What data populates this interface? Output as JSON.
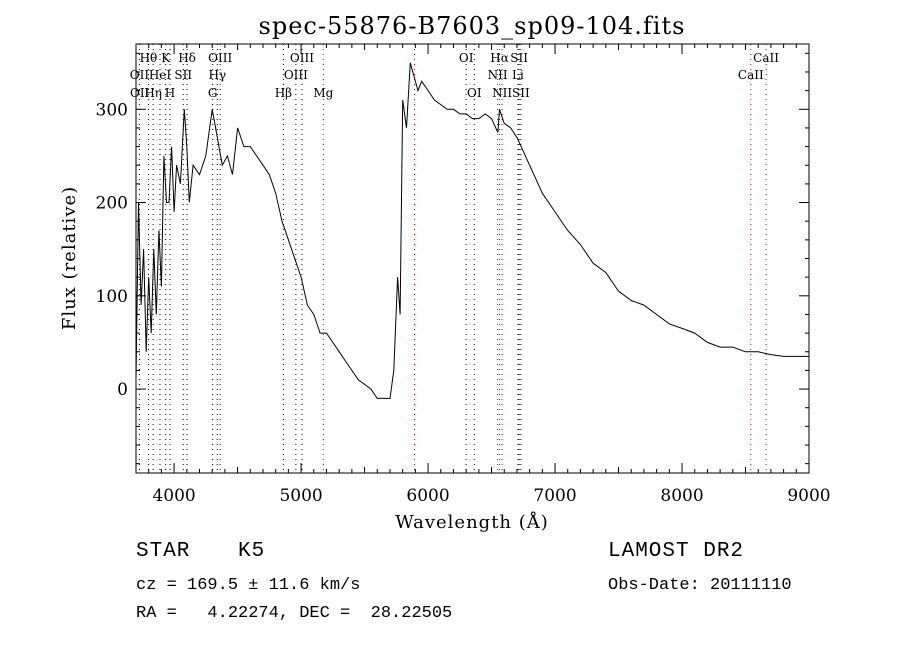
{
  "chart_data": {
    "type": "line",
    "title": "spec-55876-B7603_sp09-104.fits",
    "xlabel": "Wavelength (Å)",
    "ylabel": "Flux (relative)",
    "xlim": [
      3700,
      9000
    ],
    "ylim": [
      -90,
      370
    ],
    "x_ticks": [
      4000,
      5000,
      6000,
      7000,
      8000,
      9000
    ],
    "y_ticks": [
      0,
      100,
      200,
      300
    ],
    "grid": false,
    "series": [
      {
        "x": [
          3700,
          3720,
          3740,
          3760,
          3780,
          3800,
          3820,
          3840,
          3860,
          3880,
          3900,
          3920,
          3940,
          3960,
          3980,
          4000,
          4020,
          4050,
          4080,
          4100,
          4120,
          4150,
          4200,
          4250,
          4300,
          4340,
          4380,
          4420,
          4460,
          4500,
          4550,
          4600,
          4650,
          4700,
          4750,
          4800,
          4850,
          4900,
          4950,
          5000,
          5050,
          5100,
          5150,
          5200,
          5250,
          5300,
          5350,
          5400,
          5450,
          5500,
          5550,
          5600,
          5650,
          5700,
          5730,
          5760,
          5780,
          5800,
          5830,
          5860,
          5880,
          5900,
          5920,
          5950,
          6000,
          6050,
          6100,
          6150,
          6200,
          6250,
          6300,
          6350,
          6400,
          6450,
          6500,
          6550,
          6563,
          6600,
          6650,
          6700,
          6750,
          6800,
          6850,
          6900,
          6950,
          7000,
          7100,
          7200,
          7300,
          7400,
          7500,
          7600,
          7700,
          7800,
          7900,
          8000,
          8100,
          8200,
          8300,
          8400,
          8500,
          8600,
          8700,
          8800,
          8900,
          9000
        ],
        "y": [
          10,
          200,
          90,
          150,
          40,
          120,
          60,
          150,
          80,
          170,
          110,
          250,
          200,
          200,
          260,
          190,
          240,
          220,
          300,
          260,
          200,
          240,
          230,
          250,
          300,
          270,
          240,
          250,
          230,
          280,
          260,
          260,
          250,
          240,
          230,
          210,
          180,
          160,
          140,
          120,
          90,
          80,
          60,
          60,
          50,
          40,
          30,
          20,
          10,
          5,
          0,
          -10,
          -10,
          -10,
          20,
          120,
          80,
          310,
          280,
          350,
          340,
          330,
          320,
          330,
          320,
          310,
          305,
          300,
          300,
          295,
          295,
          290,
          290,
          295,
          290,
          275,
          300,
          285,
          280,
          270,
          255,
          240,
          225,
          210,
          200,
          190,
          170,
          155,
          135,
          125,
          105,
          95,
          90,
          80,
          70,
          65,
          60,
          50,
          45,
          45,
          40,
          40,
          37,
          35,
          35,
          35
        ]
      }
    ],
    "line_markers": [
      {
        "label": "Hθ",
        "x": 3798,
        "row": 1
      },
      {
        "label": "K",
        "x": 3934,
        "row": 1
      },
      {
        "label": "Hδ",
        "x": 4102,
        "row": 1
      },
      {
        "label": "OIII",
        "x": 4363,
        "row": 1
      },
      {
        "label": "OIII",
        "x": 5007,
        "row": 1
      },
      {
        "label": "OI",
        "x": 6300,
        "row": 1
      },
      {
        "label": "Hα",
        "x": 6563,
        "row": 1
      },
      {
        "label": "SII",
        "x": 6717,
        "row": 1
      },
      {
        "label": "CaII",
        "x": 8662,
        "row": 1
      },
      {
        "label": "OII",
        "x": 3727,
        "row": 2
      },
      {
        "label": "HeI",
        "x": 3889,
        "row": 2
      },
      {
        "label": "SII",
        "x": 4072,
        "row": 2
      },
      {
        "label": "Hγ",
        "x": 4340,
        "row": 2
      },
      {
        "label": "OIII",
        "x": 4959,
        "row": 2
      },
      {
        "label": "NII",
        "x": 6548,
        "row": 2
      },
      {
        "label": "Li",
        "x": 6708,
        "row": 2
      },
      {
        "label": "CaII",
        "x": 8542,
        "row": 2
      },
      {
        "label": "OII",
        "x": 3729,
        "row": 3
      },
      {
        "label": "Hη",
        "x": 3835,
        "row": 3
      },
      {
        "label": "H",
        "x": 3968,
        "row": 3
      },
      {
        "label": "G",
        "x": 4304,
        "row": 3
      },
      {
        "label": "Hβ",
        "x": 4861,
        "row": 3
      },
      {
        "label": "Mg",
        "x": 5175,
        "row": 3
      },
      {
        "label": "OI",
        "x": 6364,
        "row": 3
      },
      {
        "label": "NII",
        "x": 6583,
        "row": 3
      },
      {
        "label": "SII",
        "x": 6731,
        "row": 3
      }
    ],
    "marker_lines": [
      {
        "x": 3727,
        "color": "#000000"
      },
      {
        "x": 3798,
        "color": "#000000"
      },
      {
        "x": 3835,
        "color": "#000000"
      },
      {
        "x": 3889,
        "color": "#000000"
      },
      {
        "x": 3934,
        "color": "#000000"
      },
      {
        "x": 3968,
        "color": "#000000"
      },
      {
        "x": 4072,
        "color": "#000000"
      },
      {
        "x": 4102,
        "color": "#000000"
      },
      {
        "x": 4304,
        "color": "#000000"
      },
      {
        "x": 4340,
        "color": "#000000"
      },
      {
        "x": 4363,
        "color": "#000000"
      },
      {
        "x": 4861,
        "color": "#000000"
      },
      {
        "x": 4959,
        "color": "#000000"
      },
      {
        "x": 5007,
        "color": "#000000"
      },
      {
        "x": 5175,
        "color": "#cc0000"
      },
      {
        "x": 5893,
        "color": "#cc0000"
      },
      {
        "x": 6300,
        "color": "#000000"
      },
      {
        "x": 6364,
        "color": "#000000"
      },
      {
        "x": 6548,
        "color": "#cc0000"
      },
      {
        "x": 6563,
        "color": "#cc0000"
      },
      {
        "x": 6583,
        "color": "#cc0000"
      },
      {
        "x": 6708,
        "color": "#000000"
      },
      {
        "x": 6717,
        "color": "#000000"
      },
      {
        "x": 6731,
        "color": "#000000"
      },
      {
        "x": 8542,
        "color": "#cc0000"
      },
      {
        "x": 8662,
        "color": "#cc0000"
      }
    ]
  },
  "info": {
    "class": "STAR",
    "subclass": "K5",
    "survey": "LAMOST DR2",
    "cz": "cz = 169.5 ± 11.6 km/s",
    "obs_date": "Obs-Date: 20111110",
    "radec": "RA =   4.22274, DEC =  28.22505"
  }
}
